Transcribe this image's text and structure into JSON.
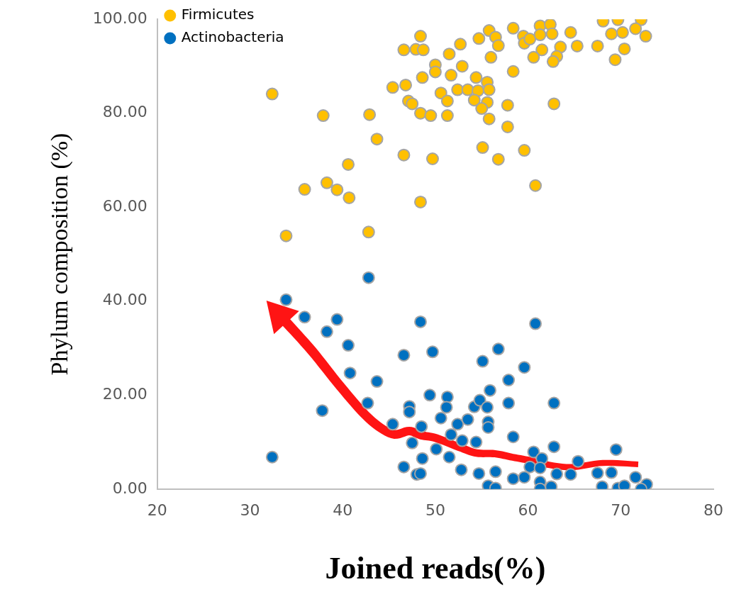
{
  "chart_data": {
    "type": "scatter",
    "xlabel": "Joined reads(%)",
    "ylabel": "Phylum composition (%)",
    "xlim": [
      20,
      80
    ],
    "xticks": [
      20,
      30,
      40,
      50,
      60,
      70,
      80
    ],
    "ylim": [
      0,
      100
    ],
    "yticks": [
      {
        "value": 0,
        "label": "0.00"
      },
      {
        "value": 20,
        "label": "20.00"
      },
      {
        "value": 40,
        "label": "40.00"
      },
      {
        "value": 60,
        "label": "60.00"
      },
      {
        "value": 80,
        "label": "80.00"
      },
      {
        "value": 100,
        "label": "100.00"
      }
    ],
    "grid": false,
    "legend": "top left",
    "marker": "circle",
    "series": [
      {
        "name": "Firmicutes",
        "color": "#ffc000",
        "x": [
          48.4,
          46.6,
          47.9,
          48.7,
          51.5,
          52.7,
          54.7,
          55.8,
          56.0,
          50.0,
          50.0,
          48.6,
          51.7,
          52.9,
          54.4,
          55.6,
          45.4,
          46.8,
          50.6,
          52.4,
          53.5,
          54.6,
          55.8,
          51.3,
          54.2,
          55.6,
          47.1,
          47.5,
          48.4,
          49.5,
          51.3,
          55.0,
          55.8,
          32.4,
          37.9,
          42.9,
          43.7,
          55.1,
          46.6,
          49.7,
          40.6,
          35.9,
          38.3,
          39.4,
          40.7,
          48.4,
          33.9,
          42.8,
          56.5,
          56.8,
          58.4,
          59.5,
          59.6,
          60.2,
          61.3,
          62.4,
          61.3,
          62.6,
          63.5,
          63.1,
          61.5,
          60.6,
          62.7,
          64.6,
          65.3,
          67.5,
          68.1,
          69.7,
          72.2,
          69.0,
          70.2,
          71.6,
          72.7,
          70.4,
          69.4,
          58.4,
          57.8,
          62.8,
          57.8,
          59.6,
          56.8,
          60.8
        ],
        "values": [
          96.4,
          93.5,
          93.6,
          93.5,
          92.6,
          94.7,
          95.9,
          97.6,
          91.9,
          90.3,
          88.8,
          87.6,
          88.1,
          90.0,
          87.6,
          86.6,
          85.5,
          86.0,
          84.3,
          85.0,
          85.0,
          84.8,
          85.0,
          82.6,
          82.8,
          82.3,
          82.6,
          82.0,
          80.0,
          79.5,
          79.5,
          81.0,
          78.8,
          84.1,
          79.5,
          79.7,
          74.5,
          72.7,
          71.1,
          70.3,
          69.1,
          63.8,
          65.2,
          63.7,
          62.0,
          61.1,
          53.9,
          54.7,
          96.2,
          94.4,
          98.1,
          96.4,
          94.9,
          95.8,
          98.6,
          98.9,
          96.7,
          96.9,
          94.1,
          92.1,
          93.5,
          91.9,
          91.0,
          97.2,
          94.3,
          94.3,
          99.6,
          99.9,
          99.9,
          96.9,
          97.2,
          98.0,
          96.4,
          93.7,
          91.4,
          88.9,
          81.7,
          82.0,
          77.1,
          72.1,
          70.2,
          64.6
        ]
      },
      {
        "name": "Actinobacteria",
        "color": "#0070c0",
        "x": [
          42.8,
          33.9,
          35.9,
          39.4,
          38.3,
          48.4,
          40.6,
          49.7,
          46.6,
          55.1,
          40.8,
          43.7,
          49.4,
          51.3,
          37.8,
          47.2,
          47.2,
          42.7,
          51.2,
          50.6,
          45.4,
          52.4,
          53.5,
          54.2,
          54.8,
          55.6,
          55.9,
          55.7,
          55.7,
          48.5,
          51.7,
          52.9,
          54.4,
          47.5,
          50.1,
          48.6,
          51.5,
          32.4,
          46.6,
          52.8,
          54.7,
          48.0,
          48.4,
          55.7,
          56.8,
          60.8,
          59.6,
          57.9,
          57.9,
          62.8,
          58.4,
          60.6,
          61.5,
          62.8,
          65.4,
          69.5,
          56.5,
          58.4,
          59.6,
          60.2,
          61.3,
          61.3,
          61.3,
          62.5,
          63.1,
          64.6,
          67.5,
          69.0,
          68.0,
          69.7,
          70.4,
          71.6,
          72.8,
          72.2,
          56.5
        ],
        "values": [
          45.0,
          40.3,
          36.6,
          36.1,
          33.5,
          35.6,
          30.6,
          29.2,
          28.5,
          27.2,
          24.7,
          22.9,
          20.0,
          19.6,
          16.7,
          17.6,
          16.4,
          18.3,
          17.4,
          15.1,
          13.8,
          13.8,
          14.8,
          17.5,
          18.9,
          17.4,
          21.0,
          14.3,
          13.1,
          13.3,
          11.6,
          10.3,
          10.0,
          9.8,
          8.5,
          6.5,
          6.8,
          6.8,
          4.7,
          4.1,
          3.3,
          3.1,
          3.3,
          0.7,
          29.8,
          35.2,
          25.9,
          23.2,
          18.3,
          18.3,
          11.1,
          7.9,
          6.5,
          9.0,
          5.9,
          8.4,
          3.7,
          2.2,
          2.5,
          4.7,
          4.5,
          1.5,
          0.0,
          0.5,
          3.2,
          3.1,
          3.4,
          3.5,
          0.5,
          0.2,
          0.7,
          2.5,
          1.0,
          0.0,
          0.2
        ]
      }
    ]
  }
}
